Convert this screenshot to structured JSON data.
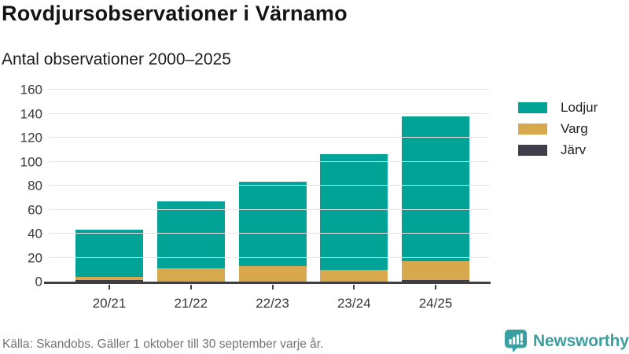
{
  "header": {
    "title": "Rovdjursobservationer i Värnamo",
    "subtitle": "Antal observationer 2000–2025"
  },
  "chart_data": {
    "type": "bar",
    "stacked": true,
    "title": "Rovdjursobservationer i Värnamo",
    "subtitle": "Antal observationer 2000–2025",
    "categories": [
      "20/21",
      "21/22",
      "22/23",
      "23/24",
      "24/25"
    ],
    "series": [
      {
        "name": "Lodjur",
        "color": "#01A396",
        "values": [
          39,
          56,
          70,
          96,
          121
        ]
      },
      {
        "name": "Varg",
        "color": "#D8A84F",
        "values": [
          3,
          11,
          13,
          10,
          16
        ]
      },
      {
        "name": "Järv",
        "color": "#3E3D4B",
        "values": [
          1,
          0,
          0,
          0,
          1
        ]
      }
    ],
    "totals": [
      43,
      67,
      83,
      106,
      138
    ],
    "xlabel": "",
    "ylabel": "",
    "ylim": [
      0,
      160
    ],
    "yticks": [
      0,
      20,
      40,
      60,
      80,
      100,
      120,
      140,
      160
    ],
    "grid": true,
    "legend_position": "right"
  },
  "footer": {
    "source": "Källa: Skandobs. Gäller 1 oktober till 30 september varje år.",
    "brand": "Newsworthy"
  },
  "colors": {
    "lodjur": "#01A396",
    "varg": "#D8A84F",
    "jarv": "#3E3D4B",
    "brand_teal": "#3A9FA0",
    "gridline": "#E3E3E3",
    "axis": "#3F3F3F"
  }
}
